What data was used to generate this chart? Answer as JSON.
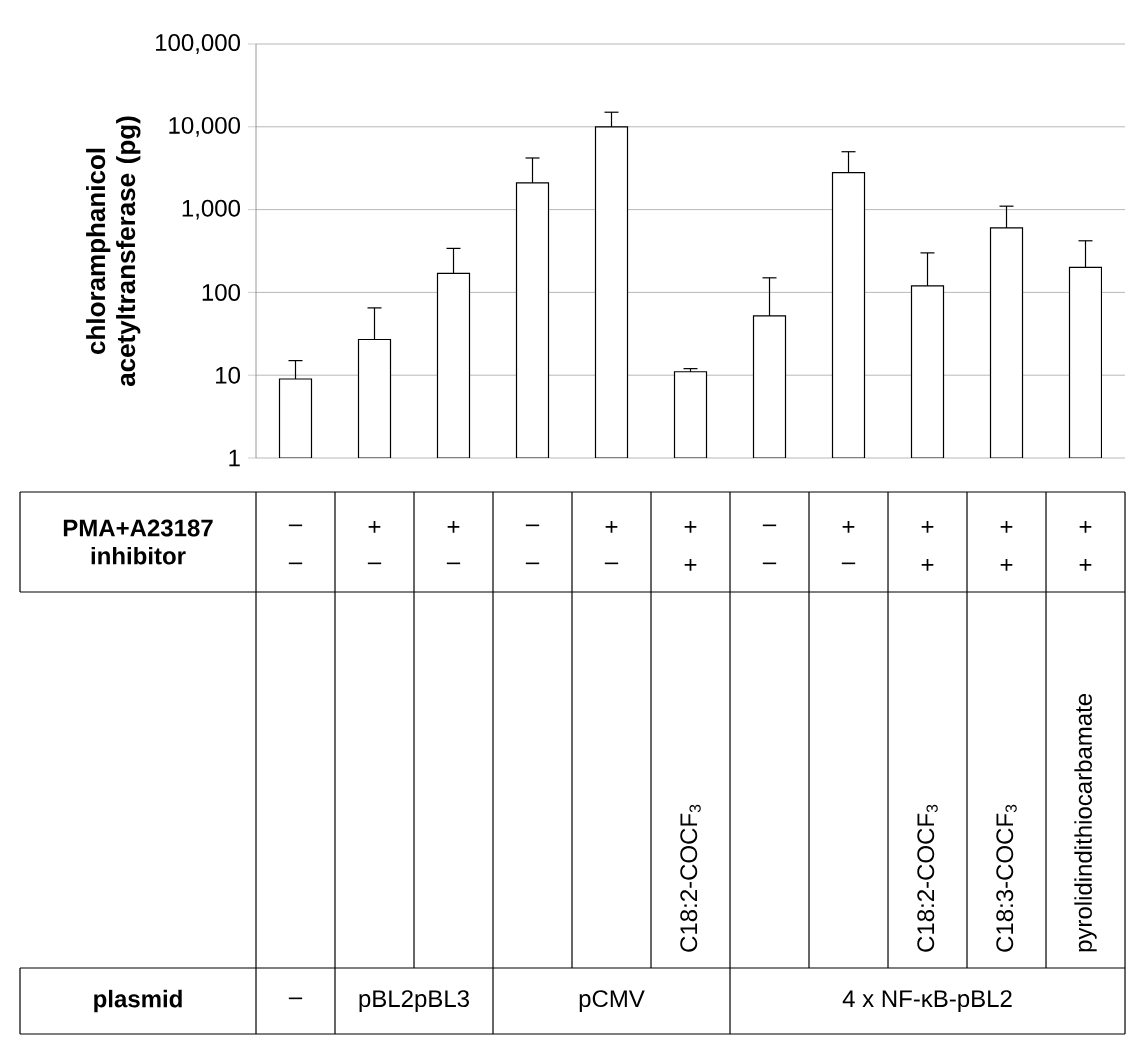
{
  "chart_data": {
    "type": "bar",
    "ylabel": "chloramphanicol acetyltransferase (pg)",
    "categories": [
      null,
      null,
      null,
      null,
      null,
      null,
      null,
      null,
      null,
      null,
      null
    ],
    "values": [
      9,
      27,
      170,
      2100,
      10000,
      11,
      52,
      2800,
      120,
      600,
      200
    ],
    "errors": [
      [
        9,
        15
      ],
      [
        27,
        65
      ],
      [
        170,
        340
      ],
      [
        2100,
        4200
      ],
      [
        10000,
        15000
      ],
      [
        11,
        12
      ],
      [
        52,
        150
      ],
      [
        2800,
        5000
      ],
      [
        120,
        300
      ],
      [
        600,
        1100
      ],
      [
        200,
        420
      ]
    ],
    "color": "#ffffff",
    "log": true,
    "ylim": [
      1,
      100000
    ],
    "yticks": [
      {
        "value": 1,
        "label": "1"
      },
      {
        "value": 10,
        "label": "10"
      },
      {
        "value": 100,
        "label": "100"
      },
      {
        "value": 1000,
        "label": "1,000"
      },
      {
        "value": 10000,
        "label": "10,000"
      },
      {
        "value": 100000,
        "label": "100,000"
      }
    ],
    "grid": "y",
    "annotations": [
      "PMA+A23187",
      "inhibitor",
      "plasmid",
      "–",
      "+",
      "+",
      "–",
      "+",
      "+",
      "–",
      "+",
      "+",
      "+",
      "+",
      "–",
      "–",
      "–",
      "–",
      "–",
      "+",
      "–",
      "–",
      "+",
      "+",
      "+",
      "C18:2-COCF$_{3}$",
      "C18:2-COCF$_{3}$",
      "C18:3-COCF$_{3}$",
      "pyrolidindithiocarbamate",
      "–",
      "pBL2pBL3",
      "pCMV",
      "4 x NF-κB-pBL2"
    ]
  }
}
